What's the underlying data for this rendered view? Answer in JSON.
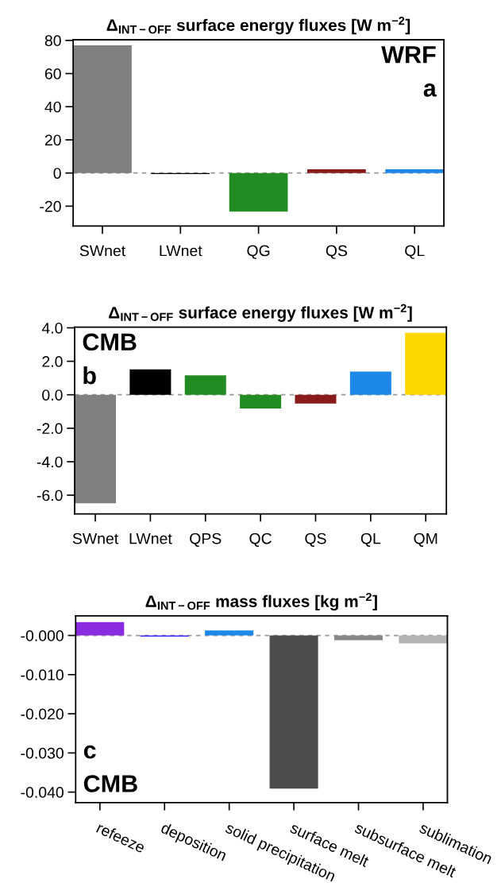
{
  "chart_data": [
    {
      "type": "bar",
      "title": "Δ$_{INT−OFF}$ surface energy fluxes [W m$^{−2}$]",
      "categories": [
        "SWnet",
        "LWnet",
        "QG",
        "QS",
        "QL"
      ],
      "values": [
        77.1,
        -0.6,
        -23.3,
        2.3,
        2.3
      ],
      "colors": [
        "#808080",
        "#000000",
        "#228b22",
        "#8b1a1a",
        "#1e88e8"
      ],
      "ylim": [
        -32,
        80.4
      ],
      "yticks": [
        -20,
        0,
        20,
        40,
        60,
        80
      ],
      "grid": false,
      "ref_lines": [
        {
          "axis": "y",
          "value": 0,
          "color": "#999999",
          "line_style": "dashed"
        }
      ],
      "annotations": [
        "WRF",
        "a"
      ]
    },
    {
      "type": "bar",
      "title": "Δ$_{INT−OFF}$ surface energy fluxes [W m$^{−2}$]",
      "categories": [
        "SWnet",
        "LWnet",
        "QPS",
        "QC",
        "QS",
        "QL",
        "QM"
      ],
      "values": [
        -6.48,
        1.52,
        1.16,
        -0.82,
        -0.53,
        1.39,
        3.7
      ],
      "colors": [
        "#808080",
        "#000000",
        "#228b22",
        "#228b22",
        "#8b1a1a",
        "#1e88e8",
        "#ffd700"
      ],
      "ylim": [
        -7.12,
        4.04
      ],
      "yticks": [
        {
          "value": -6,
          "label": "-6.0"
        },
        {
          "value": -4,
          "label": "-4.0"
        },
        {
          "value": -2,
          "label": "-2.0"
        },
        {
          "value": 0,
          "label": "0.0"
        },
        {
          "value": 2,
          "label": "2.0"
        },
        {
          "value": 4,
          "label": "4.0"
        }
      ],
      "grid": false,
      "ref_lines": [
        {
          "axis": "y",
          "value": 0,
          "color": "#999999",
          "line_style": "dashed"
        }
      ],
      "annotations": [
        "CMB",
        "b"
      ]
    },
    {
      "type": "bar",
      "title": "Δ$_{INT−OFF}$ mass fluxes [kg m$^{−2}$]",
      "categories": [
        "refeeze",
        "deposition",
        "solid precipitation",
        "surface melt",
        "subsurface melt",
        "sublimation"
      ],
      "values": [
        0.0034,
        -0.0003,
        0.0013,
        -0.0391,
        -0.0012,
        -0.002
      ],
      "colors": [
        "#8a2be2",
        "#3a2bff",
        "#1e88e8",
        "#4d4d4d",
        "#888888",
        "#b3b3b3"
      ],
      "ylim": [
        -0.0427,
        0.005
      ],
      "yticks": [
        {
          "value": -0.04,
          "label": "-0.040"
        },
        {
          "value": -0.03,
          "label": "-0.030"
        },
        {
          "value": -0.02,
          "label": "-0.020"
        },
        {
          "value": -0.01,
          "label": "-0.010"
        },
        {
          "value": 0,
          "label": "-0.000"
        }
      ],
      "grid": false,
      "ref_lines": [
        {
          "axis": "y",
          "value": 0,
          "color": "#999999",
          "line_style": "dashed"
        }
      ],
      "annotations": [
        "c",
        "CMB"
      ]
    }
  ]
}
